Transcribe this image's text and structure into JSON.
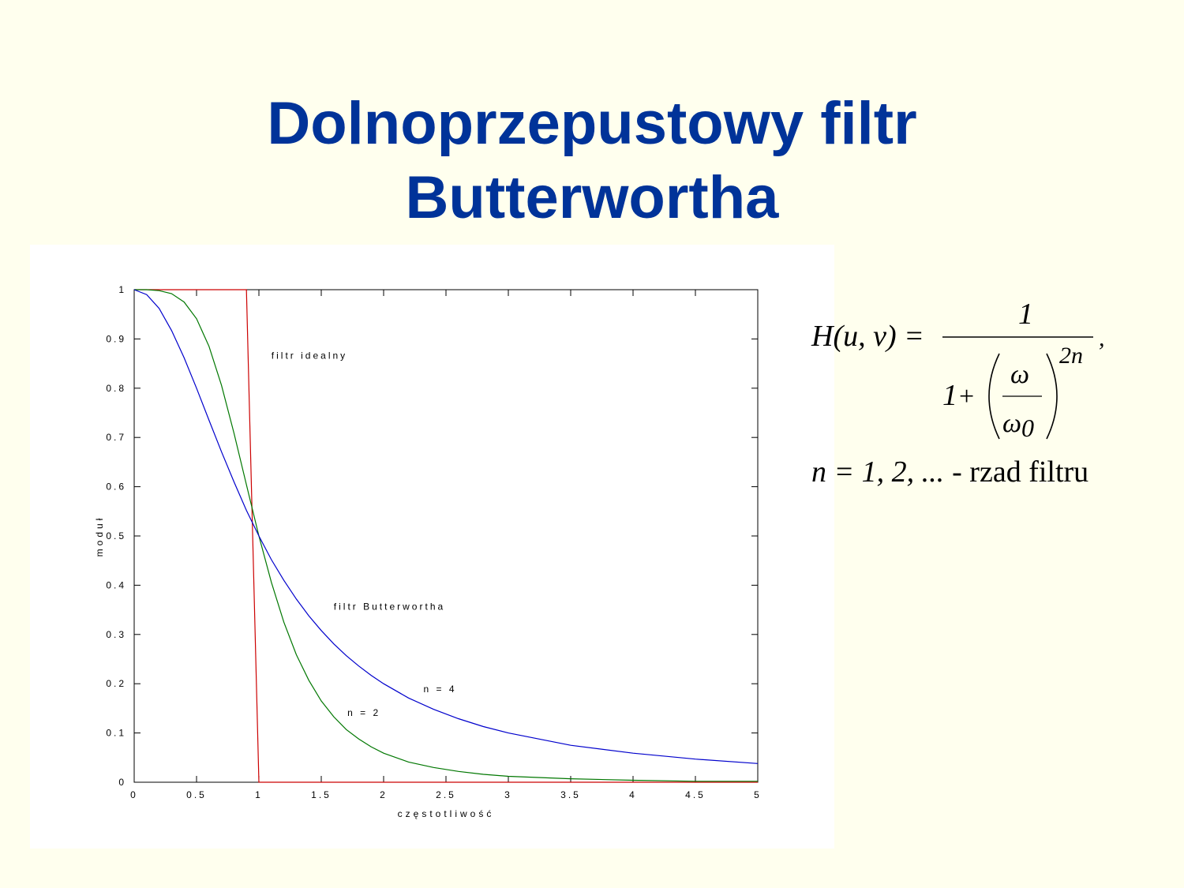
{
  "title": {
    "line1": "Dolnoprzepustowy filtr",
    "line2": "Butterwortha"
  },
  "colors": {
    "title": "#003399",
    "background": "#ffffee",
    "series_ideal": "#cc0000",
    "series_n2": "#007700",
    "series_n4": "#0000cc"
  },
  "formula": {
    "lhs": "H(u, v) =",
    "numerator": "1",
    "denominator_one": "1",
    "plus": "+",
    "inner_numerator": "ω",
    "inner_denominator_symbol": "ω",
    "inner_denominator_subscript": "0",
    "exponent": "2n",
    "comma": ",",
    "order_expr": "n = 1, 2, ...",
    "order_desc": "- rzad filtru"
  },
  "chart_data": {
    "type": "line",
    "xlabel": "częstotliwość",
    "ylabel": "moduł",
    "xlim": [
      0,
      5
    ],
    "ylim": [
      0,
      1
    ],
    "x_ticks": [
      "0",
      "0.5",
      "1",
      "1.5",
      "2",
      "2.5",
      "3",
      "3.5",
      "4",
      "4.5",
      "5"
    ],
    "y_ticks": [
      "0",
      "0.1",
      "0.2",
      "0.3",
      "0.4",
      "0.5",
      "0.6",
      "0.7",
      "0.8",
      "0.9",
      "1"
    ],
    "grid": false,
    "annotations": [
      {
        "text": "filtr idealny",
        "x": 1.1,
        "y": 0.86
      },
      {
        "text": "filtr Butterwortha",
        "x": 1.6,
        "y": 0.35
      },
      {
        "text": "n = 4",
        "x": 2.32,
        "y": 0.183
      },
      {
        "text": "n = 2",
        "x": 1.71,
        "y": 0.135
      }
    ],
    "series": [
      {
        "key": "ideal",
        "x": [
          0,
          0.9,
          1.0,
          5.0
        ],
        "values": [
          1,
          1,
          0,
          0
        ]
      },
      {
        "key": "n2",
        "x": [
          0,
          0.1,
          0.2,
          0.3,
          0.4,
          0.5,
          0.6,
          0.7,
          0.8,
          0.9,
          1.0,
          1.1,
          1.2,
          1.3,
          1.4,
          1.5,
          1.6,
          1.7,
          1.8,
          1.9,
          2.0,
          2.2,
          2.4,
          2.6,
          2.8,
          3.0,
          3.5,
          4.0,
          4.5,
          5.0
        ],
        "values": [
          1.0,
          1.0,
          0.998,
          0.992,
          0.975,
          0.941,
          0.885,
          0.806,
          0.709,
          0.604,
          0.5,
          0.406,
          0.325,
          0.259,
          0.207,
          0.165,
          0.133,
          0.107,
          0.088,
          0.072,
          0.059,
          0.041,
          0.03,
          0.022,
          0.016,
          0.012,
          0.007,
          0.004,
          0.002,
          0.002
        ]
      },
      {
        "key": "n4",
        "x": [
          0,
          0.1,
          0.2,
          0.3,
          0.4,
          0.5,
          0.6,
          0.7,
          0.8,
          0.9,
          1.0,
          1.1,
          1.2,
          1.3,
          1.4,
          1.5,
          1.6,
          1.7,
          1.8,
          1.9,
          2.0,
          2.2,
          2.4,
          2.6,
          2.8,
          3.0,
          3.5,
          4.0,
          4.5,
          5.0
        ],
        "values": [
          1.0,
          0.99,
          0.962,
          0.917,
          0.862,
          0.8,
          0.735,
          0.671,
          0.61,
          0.552,
          0.5,
          0.452,
          0.41,
          0.372,
          0.338,
          0.308,
          0.281,
          0.257,
          0.236,
          0.217,
          0.2,
          0.171,
          0.148,
          0.129,
          0.113,
          0.1,
          0.075,
          0.059,
          0.047,
          0.038
        ]
      }
    ]
  }
}
